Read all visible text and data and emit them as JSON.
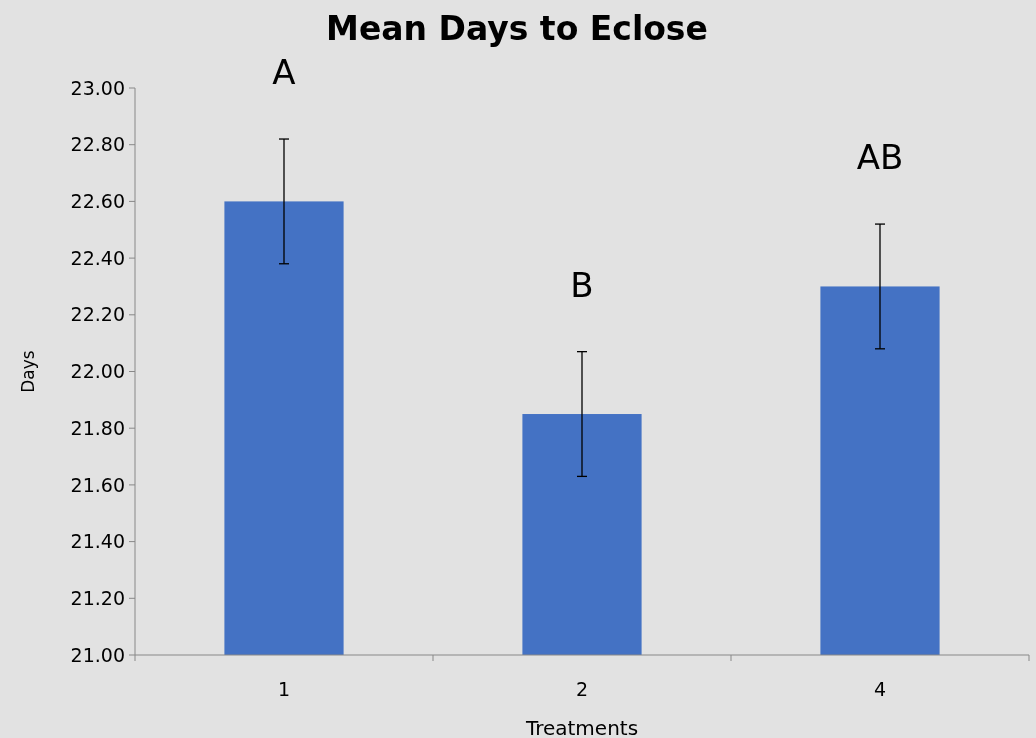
{
  "chart_data": {
    "type": "bar",
    "title": "Mean Days to Eclose",
    "xlabel": "Treatments",
    "ylabel": "Days",
    "categories": [
      "1",
      "2",
      "4"
    ],
    "values": [
      22.6,
      21.85,
      22.3
    ],
    "errors": [
      0.22,
      0.22,
      0.22
    ],
    "color": "#4472c4",
    "ylim": [
      21,
      23
    ],
    "yticks": [
      {
        "value": 21,
        "label": "21.00"
      },
      {
        "value": 21.2,
        "label": "21.20"
      },
      {
        "value": 21.4,
        "label": "21.40"
      },
      {
        "value": 21.6,
        "label": "21.60"
      },
      {
        "value": 21.8,
        "label": "21.80"
      },
      {
        "value": 22,
        "label": "22.00"
      },
      {
        "value": 22.2,
        "label": "22.20"
      },
      {
        "value": 22.4,
        "label": "22.40"
      },
      {
        "value": 22.6,
        "label": "22.60"
      },
      {
        "value": 22.8,
        "label": "22.80"
      },
      {
        "value": 23,
        "label": "23.00"
      }
    ],
    "annotations": [
      "A",
      "B",
      "AB"
    ],
    "grid": false
  }
}
